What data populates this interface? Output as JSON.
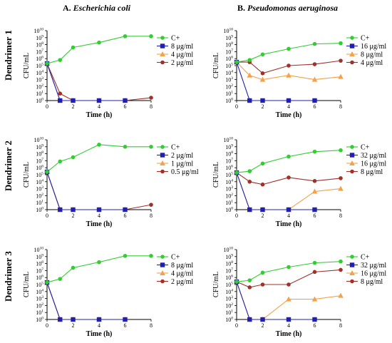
{
  "header": {
    "col_a_prefix": "A. ",
    "col_a_species": "Escherichia coli",
    "col_b_prefix": "B. ",
    "col_b_species": "Pseudomonas aeruginosa"
  },
  "rows": [
    "Dendrimer 1",
    "Dendrimer 2",
    "Dendrimer 3"
  ],
  "colors": {
    "control": "#33CC33",
    "high": "#2020B0",
    "mid": "#F4A14A",
    "low": "#A0302A"
  },
  "chart_data": [
    {
      "type": "line",
      "panel": "D1-A",
      "ylabel": "CFU/mL",
      "xlabel": "Time (h)",
      "x_ticks": [
        0,
        2,
        4,
        6,
        8
      ],
      "xlim": [
        0,
        8
      ],
      "ylim": [
        0,
        10
      ],
      "y_scale": "log10",
      "series": [
        {
          "name": "C+",
          "marker": "circle",
          "color": "#33CC33",
          "x": [
            0,
            1,
            2,
            4,
            6,
            8
          ],
          "y": [
            5.3,
            5.8,
            7.6,
            8.3,
            9.2,
            9.2
          ]
        },
        {
          "name": "8 μg/ml",
          "marker": "square",
          "color": "#2020B0",
          "x": [
            0,
            1,
            2,
            4,
            6
          ],
          "y": [
            5.3,
            0,
            0,
            0,
            0
          ]
        },
        {
          "name": "4 μg/ml",
          "marker": "triangle",
          "color": "#F4A14A",
          "x": [
            0,
            1,
            2,
            4,
            6
          ],
          "y": [
            5.3,
            0,
            0,
            0,
            0
          ]
        },
        {
          "name": "2 μg/ml",
          "marker": "circle",
          "color": "#A0302A",
          "x": [
            0,
            1,
            2,
            4,
            6,
            8
          ],
          "y": [
            5.3,
            1.0,
            0,
            0,
            0,
            0.4
          ]
        }
      ]
    },
    {
      "type": "line",
      "panel": "D1-B",
      "ylabel": "CFU/mL",
      "xlabel": "Time (h)",
      "x_ticks": [
        0,
        2,
        4,
        6,
        8
      ],
      "xlim": [
        0,
        8
      ],
      "ylim": [
        0,
        10
      ],
      "y_scale": "log10",
      "series": [
        {
          "name": "C+",
          "marker": "circle",
          "color": "#33CC33",
          "x": [
            0,
            1,
            2,
            4,
            6,
            8
          ],
          "y": [
            5.5,
            5.8,
            6.6,
            7.4,
            8.1,
            8.2
          ]
        },
        {
          "name": "16 μg/ml",
          "marker": "square",
          "color": "#2020B0",
          "x": [
            0,
            1,
            2,
            4,
            6
          ],
          "y": [
            5.5,
            0,
            0,
            0,
            0
          ]
        },
        {
          "name": "8 μg/ml",
          "marker": "triangle",
          "color": "#F4A14A",
          "x": [
            0,
            1,
            2,
            4,
            6,
            8
          ],
          "y": [
            5.5,
            3.6,
            3.0,
            3.6,
            3.0,
            3.4
          ]
        },
        {
          "name": "4 μg/ml",
          "marker": "circle",
          "color": "#A0302A",
          "x": [
            0,
            1,
            2,
            4,
            6,
            8
          ],
          "y": [
            5.5,
            5.5,
            3.9,
            5.0,
            5.2,
            5.7
          ]
        }
      ]
    },
    {
      "type": "line",
      "panel": "D2-A",
      "ylabel": "CFU/mL",
      "xlabel": "Time (h)",
      "x_ticks": [
        0,
        2,
        4,
        6,
        8
      ],
      "xlim": [
        0,
        8
      ],
      "ylim": [
        0,
        10
      ],
      "y_scale": "log10",
      "series": [
        {
          "name": "C+",
          "marker": "circle",
          "color": "#33CC33",
          "x": [
            0,
            1,
            2,
            4,
            6,
            8
          ],
          "y": [
            5.4,
            6.9,
            7.5,
            9.3,
            9.0,
            9.0
          ]
        },
        {
          "name": "2 μg/ml",
          "marker": "square",
          "color": "#2020B0",
          "x": [
            0,
            1,
            2,
            4,
            6
          ],
          "y": [
            5.4,
            0,
            0,
            0,
            0
          ]
        },
        {
          "name": "1 μg/ml",
          "marker": "triangle",
          "color": "#F4A14A",
          "x": [
            0,
            1,
            2,
            4,
            6
          ],
          "y": [
            5.4,
            0,
            0,
            0,
            0
          ]
        },
        {
          "name": "0.5 μg/ml",
          "marker": "circle",
          "color": "#A0302A",
          "x": [
            0,
            1,
            2,
            4,
            6,
            8
          ],
          "y": [
            5.4,
            0,
            0,
            0,
            0,
            0.7
          ]
        }
      ]
    },
    {
      "type": "line",
      "panel": "D2-B",
      "ylabel": "CFU/mL",
      "xlabel": "Time (h)",
      "x_ticks": [
        0,
        2,
        4,
        6,
        8
      ],
      "xlim": [
        0,
        8
      ],
      "ylim": [
        0,
        10
      ],
      "y_scale": "log10",
      "series": [
        {
          "name": "C+",
          "marker": "circle",
          "color": "#33CC33",
          "x": [
            0,
            1,
            2,
            4,
            6,
            8
          ],
          "y": [
            5.3,
            5.5,
            6.6,
            7.6,
            8.3,
            8.5
          ]
        },
        {
          "name": "32 μg/ml",
          "marker": "square",
          "color": "#2020B0",
          "x": [
            0,
            1,
            2,
            4,
            6
          ],
          "y": [
            5.3,
            0,
            0,
            0,
            0
          ]
        },
        {
          "name": "16 μg/ml",
          "marker": "triangle",
          "color": "#F4A14A",
          "x": [
            0,
            1,
            2,
            4,
            6,
            8
          ],
          "y": [
            5.3,
            0,
            0,
            0,
            2.6,
            3.0
          ]
        },
        {
          "name": "8 μg/ml",
          "marker": "circle",
          "color": "#A0302A",
          "x": [
            0,
            1,
            2,
            4,
            6,
            8
          ],
          "y": [
            5.3,
            4.0,
            3.6,
            4.6,
            4.1,
            4.5
          ]
        }
      ]
    },
    {
      "type": "line",
      "panel": "D3-A",
      "ylabel": "CFU/mL",
      "xlabel": "Time (h)",
      "x_ticks": [
        0,
        2,
        4,
        6,
        8
      ],
      "xlim": [
        0,
        8
      ],
      "ylim": [
        0,
        10
      ],
      "y_scale": "log10",
      "series": [
        {
          "name": "C+",
          "marker": "circle",
          "color": "#33CC33",
          "x": [
            0,
            1,
            2,
            4,
            6,
            8
          ],
          "y": [
            5.3,
            5.8,
            7.4,
            8.2,
            9.1,
            9.1
          ]
        },
        {
          "name": "8 μg/ml",
          "marker": "square",
          "color": "#2020B0",
          "x": [
            0,
            1,
            2,
            4,
            6
          ],
          "y": [
            5.3,
            0,
            0,
            0,
            0
          ]
        },
        {
          "name": "4 μg/ml",
          "marker": "triangle",
          "color": "#F4A14A",
          "x": [
            0,
            1,
            2,
            4,
            6
          ],
          "y": [
            5.3,
            0,
            0,
            0,
            0
          ]
        },
        {
          "name": "2 μg/ml",
          "marker": "circle",
          "color": "#A0302A",
          "x": [
            0,
            1,
            2,
            4,
            6
          ],
          "y": [
            5.3,
            0,
            0,
            0,
            0
          ]
        }
      ]
    },
    {
      "type": "line",
      "panel": "D3-B",
      "ylabel": "CFU/mL",
      "xlabel": "Time (h)",
      "x_ticks": [
        0,
        2,
        4,
        6,
        8
      ],
      "xlim": [
        0,
        8
      ],
      "ylim": [
        0,
        10
      ],
      "y_scale": "log10",
      "series": [
        {
          "name": "C+",
          "marker": "circle",
          "color": "#33CC33",
          "x": [
            0,
            1,
            2,
            4,
            6,
            8
          ],
          "y": [
            5.4,
            5.6,
            6.7,
            7.5,
            8.1,
            8.3
          ]
        },
        {
          "name": "32 μg/ml",
          "marker": "square",
          "color": "#2020B0",
          "x": [
            0,
            1,
            2,
            4,
            6
          ],
          "y": [
            5.4,
            0,
            0,
            0,
            0
          ]
        },
        {
          "name": "16 μg/ml",
          "marker": "triangle",
          "color": "#F4A14A",
          "x": [
            0,
            1,
            2,
            4,
            6,
            8
          ],
          "y": [
            5.4,
            0,
            0,
            2.9,
            2.9,
            3.4
          ]
        },
        {
          "name": "8 μg/ml",
          "marker": "circle",
          "color": "#A0302A",
          "x": [
            0,
            1,
            2,
            4,
            6,
            8
          ],
          "y": [
            5.4,
            4.6,
            5.0,
            5.0,
            6.8,
            7.1
          ]
        }
      ]
    }
  ]
}
